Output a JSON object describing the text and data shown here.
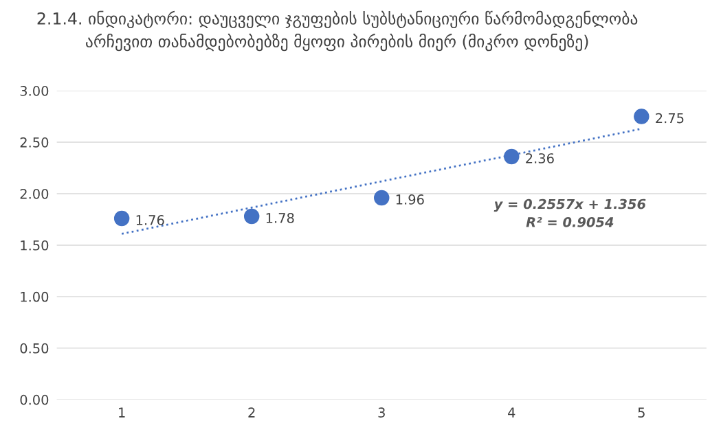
{
  "chart_data": {
    "type": "scatter",
    "title": "2.1.4. ინდიკატორი: დაუცველი ჯგუფების სუბსტანიციური წარმომადგენლობა არჩევით თანამდებობებზე მყოფი პირების მიერ (მიკრო დონეზე)",
    "x": [
      1,
      2,
      3,
      4,
      5
    ],
    "series": [
      {
        "color": "#4472c4",
        "values": [
          1.76,
          1.78,
          1.96,
          2.36,
          2.75
        ],
        "data_labels": true,
        "marker": "circle"
      },
      {
        "type": "line",
        "color": "#4472c4",
        "x": [
          1,
          5
        ],
        "values": [
          1.61,
          2.63
        ],
        "line_style": "dotted",
        "marker": "none"
      }
    ],
    "annotations": [
      "y = 0.2557x + 1.356\nR² = 0.9054"
    ],
    "xlim": [
      0.5,
      5.5
    ],
    "xticks": [
      1,
      2,
      3,
      4,
      5
    ],
    "ylim": [
      0,
      3
    ],
    "yticks": [
      {
        "value": 0,
        "label": "0.00"
      },
      {
        "value": 0.5,
        "label": "0.50"
      },
      {
        "value": 1,
        "label": "1.00"
      },
      {
        "value": 1.5,
        "label": "1.50"
      },
      {
        "value": 2,
        "label": "2.00"
      },
      {
        "value": 2.5,
        "label": "2.50"
      },
      {
        "value": 3,
        "label": "3.00"
      }
    ],
    "grid": "y",
    "legend": false
  }
}
